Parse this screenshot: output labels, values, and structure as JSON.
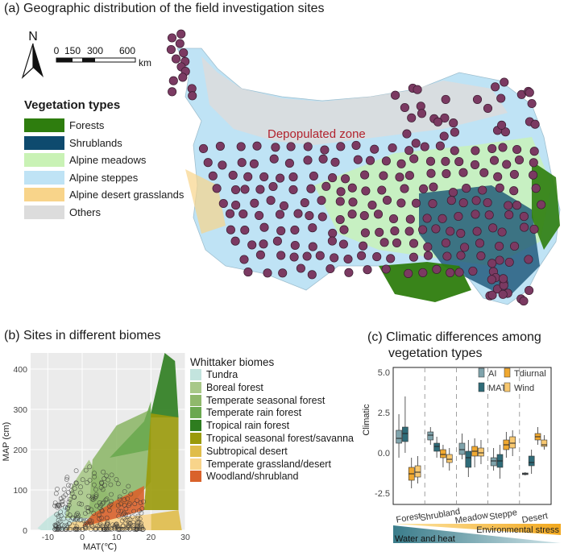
{
  "panel_a": {
    "title": "(a) Geographic distribution of the field investigation sites",
    "north": "N",
    "scalebar": {
      "ticks": [
        "0",
        "150",
        "300",
        "600"
      ],
      "unit": "km"
    },
    "legend_title": "Vegetation types",
    "legend": [
      {
        "label": "Forests",
        "color": "#2e7d0e"
      },
      {
        "label": "Shrublands",
        "color": "#0e4a6e"
      },
      {
        "label": "Alpine meadows",
        "color": "#c9f2b5"
      },
      {
        "label": "Alpine steppes",
        "color": "#bfe3f5"
      },
      {
        "label": "Alpine desert grasslands",
        "color": "#f8d48a"
      },
      {
        "label": "Others",
        "color": "#dcdcdc"
      }
    ],
    "annotation": "Depopulated zone",
    "site_color": "#7b3a62"
  },
  "panel_b": {
    "title": "(b) Sites in different biomes",
    "legend_title": "Whittaker biomes",
    "legend": [
      {
        "label": "Tundra",
        "color": "#c3e4de"
      },
      {
        "label": "Boreal forest",
        "color": "#a8c888"
      },
      {
        "label": "Temperate seasonal forest",
        "color": "#8fb86b"
      },
      {
        "label": "Temperate rain forest",
        "color": "#6aa84f"
      },
      {
        "label": "Tropical rain forest",
        "color": "#2e7d1f"
      },
      {
        "label": "Tropical seasonal forest/savanna",
        "color": "#9a9a0a"
      },
      {
        "label": "Subtropical desert",
        "color": "#e0bd4a"
      },
      {
        "label": "Temperate grassland/desert",
        "color": "#f8d48a"
      },
      {
        "label": "Woodland/shrubland",
        "color": "#d9622b"
      }
    ]
  },
  "panel_c": {
    "title_line1": "(c) Climatic differences among",
    "title_line2": "vegetation types",
    "legend": [
      {
        "label": "AI",
        "color": "#7fa3ab"
      },
      {
        "label": "MAT",
        "color": "#2f6b78"
      },
      {
        "label": "Tdiurnal",
        "color": "#f0a830"
      },
      {
        "label": "Wind",
        "color": "#f8c870"
      }
    ],
    "gradient_labels": {
      "top": "Environmental stress",
      "bottom": "Water and heat"
    }
  },
  "chart_data": [
    {
      "type": "scatter",
      "title": "(b) Sites in different biomes",
      "xlabel": "MAT(℃)",
      "ylabel": "MAP (cm)",
      "xlim": [
        -15,
        30
      ],
      "ylim": [
        0,
        440
      ],
      "xticks": [
        "-10",
        "0",
        "10",
        "20",
        "30"
      ],
      "yticks": [
        "0",
        "100",
        "200",
        "300",
        "400"
      ],
      "point_cloud": {
        "x_range": [
          -8,
          18
        ],
        "y_range": [
          0,
          190
        ],
        "n": 280
      }
    },
    {
      "type": "box",
      "title": "(c) Climatic differences among vegetation types",
      "ylabel": "Climatic",
      "ylim": [
        -3.2,
        5.3
      ],
      "yticks": [
        "-2.5",
        "0.0",
        "2.5",
        "5.0"
      ],
      "categories": [
        "Forest",
        "Shrubland",
        "Meadow",
        "Steppe",
        "Desert"
      ],
      "series": [
        {
          "name": "AI",
          "boxes": [
            {
              "min": -0.3,
              "q1": 0.6,
              "median": 0.9,
              "q3": 1.4,
              "max": 2.4
            },
            {
              "min": 0.5,
              "q1": 0.8,
              "median": 1.1,
              "q3": 1.3,
              "max": 1.6
            },
            {
              "min": -0.4,
              "q1": -0.1,
              "median": 0.2,
              "q3": 0.6,
              "max": 1.2
            },
            {
              "min": -1.1,
              "q1": -0.8,
              "median": -0.5,
              "q3": -0.3,
              "max": 0.3
            },
            {
              "min": -1.4,
              "q1": -1.35,
              "median": -1.3,
              "q3": -1.25,
              "max": -1.2
            }
          ]
        },
        {
          "name": "MAT",
          "boxes": [
            {
              "min": 0.0,
              "q1": 0.7,
              "median": 1.2,
              "q3": 1.6,
              "max": 3.5
            },
            {
              "min": -0.3,
              "q1": 0.1,
              "median": 0.4,
              "q3": 0.6,
              "max": 1.0
            },
            {
              "min": -1.5,
              "q1": -0.9,
              "median": -0.3,
              "q3": 0.1,
              "max": 0.8
            },
            {
              "min": -1.6,
              "q1": -0.9,
              "median": -0.5,
              "q3": -0.1,
              "max": 0.5
            },
            {
              "min": -1.3,
              "q1": -0.8,
              "median": -0.6,
              "q3": -0.2,
              "max": 0.2
            }
          ]
        },
        {
          "name": "Tdiurnal",
          "boxes": [
            {
              "min": -2.2,
              "q1": -1.7,
              "median": -1.3,
              "q3": -0.9,
              "max": -0.3
            },
            {
              "min": -0.9,
              "q1": -0.3,
              "median": -0.1,
              "q3": 0.2,
              "max": 0.5
            },
            {
              "min": -0.9,
              "q1": -0.2,
              "median": 0.1,
              "q3": 0.4,
              "max": 0.9
            },
            {
              "min": -0.3,
              "q1": 0.2,
              "median": 0.5,
              "q3": 0.8,
              "max": 1.3
            },
            {
              "min": 0.5,
              "q1": 0.8,
              "median": 1.0,
              "q3": 1.2,
              "max": 1.6
            }
          ]
        },
        {
          "name": "Wind",
          "boxes": [
            {
              "min": -1.9,
              "q1": -1.5,
              "median": -1.2,
              "q3": -0.8,
              "max": -0.2
            },
            {
              "min": -1.1,
              "q1": -0.6,
              "median": -0.4,
              "q3": -0.1,
              "max": 0.3
            },
            {
              "min": -0.7,
              "q1": -0.2,
              "median": 0.0,
              "q3": 0.3,
              "max": 0.8
            },
            {
              "min": -0.2,
              "q1": 0.3,
              "median": 0.6,
              "q3": 1.0,
              "max": 1.4
            },
            {
              "min": 0.2,
              "q1": 0.4,
              "median": 0.5,
              "q3": 0.8,
              "max": 1.1
            }
          ]
        }
      ]
    }
  ]
}
